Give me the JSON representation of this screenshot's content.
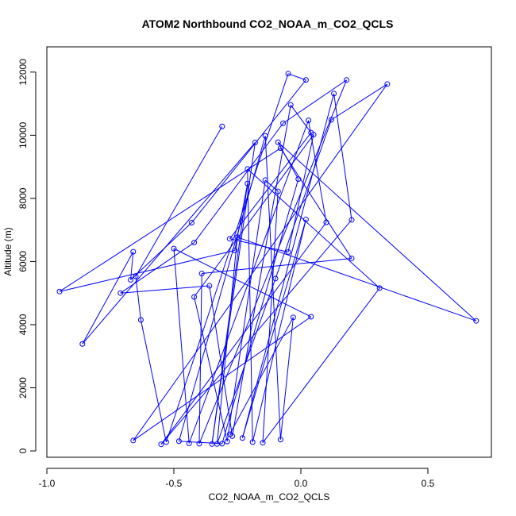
{
  "chart_data": {
    "type": "line",
    "title": "ATOM2 Northbound CO2_NOAA_m_CO2_QCLS",
    "xlabel": "CO2_NOAA_m_CO2_QCLS",
    "ylabel": "Altitude (m)",
    "xlim": [
      -1.0,
      0.75
    ],
    "ylim": [
      -200,
      12800
    ],
    "xticks": [
      -1.0,
      -0.5,
      0.0,
      0.5
    ],
    "xtick_labels": [
      "-1.0",
      "-0.5",
      "0.0",
      "0.5"
    ],
    "yticks": [
      0,
      2000,
      4000,
      6000,
      8000,
      10000,
      12000
    ],
    "ytick_labels": [
      "0",
      "2000",
      "4000",
      "6000",
      "8000",
      "10000",
      "12000"
    ],
    "grid": false,
    "marker": "open-circle",
    "series": [
      {
        "color": "#0000ff",
        "points": [
          [
            -0.31,
            10280
          ],
          [
            -0.65,
            5530
          ],
          [
            -0.63,
            4150
          ],
          [
            -0.53,
            280
          ],
          [
            -0.05,
            11950
          ],
          [
            0.02,
            11750
          ],
          [
            -0.43,
            7230
          ],
          [
            -0.67,
            5420
          ],
          [
            -0.66,
            6310
          ],
          [
            -0.86,
            3390
          ],
          [
            -0.18,
            9770
          ],
          [
            -0.35,
            220
          ],
          [
            -0.21,
            8470
          ],
          [
            -0.26,
            6350
          ],
          [
            -0.95,
            5050
          ],
          [
            -0.08,
            9590
          ],
          [
            0.2,
            6100
          ],
          [
            -0.39,
            5620
          ],
          [
            -0.4,
            230
          ],
          [
            0.18,
            11750
          ],
          [
            -0.07,
            10380
          ],
          [
            -0.42,
            6600
          ],
          [
            -0.71,
            5000
          ],
          [
            -0.36,
            5230
          ],
          [
            -0.27,
            470
          ],
          [
            -0.04,
            10960
          ],
          [
            0.04,
            10080
          ],
          [
            -0.28,
            6720
          ],
          [
            -0.05,
            6300
          ],
          [
            0.05,
            10020
          ],
          [
            -0.42,
            4880
          ],
          [
            -0.29,
            300
          ],
          [
            -0.14,
            8580
          ],
          [
            -0.09,
            8220
          ],
          [
            -0.15,
            260
          ],
          [
            0.31,
            5160
          ],
          [
            -0.21,
            8930
          ],
          [
            -0.19,
            280
          ],
          [
            0.02,
            7330
          ],
          [
            -0.23,
            410
          ],
          [
            0.13,
            11320
          ],
          [
            0.2,
            7320
          ],
          [
            -0.55,
            210
          ],
          [
            0.1,
            7240
          ],
          [
            0.03,
            10470
          ],
          [
            -0.44,
            240
          ],
          [
            -0.5,
            6410
          ],
          [
            0.04,
            4250
          ],
          [
            -0.66,
            330
          ],
          [
            0.34,
            11620
          ],
          [
            0.12,
            10490
          ],
          [
            -0.1,
            5460
          ],
          [
            -0.33,
            220
          ],
          [
            -0.25,
            6770
          ],
          [
            0.69,
            4120
          ],
          [
            -0.09,
            9780
          ],
          [
            -0.01,
            8610
          ],
          [
            -0.31,
            230
          ],
          [
            -0.48,
            310
          ],
          [
            -0.14,
            9980
          ],
          [
            -0.08,
            360
          ],
          [
            -0.03,
            4230
          ],
          [
            -0.28,
            530
          ]
        ]
      }
    ]
  }
}
